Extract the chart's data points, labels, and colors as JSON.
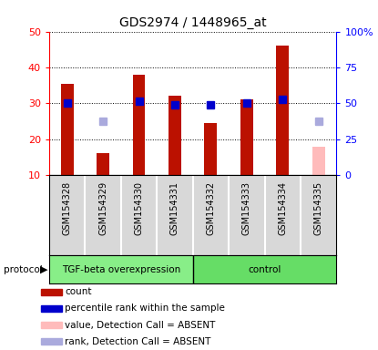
{
  "title": "GDS2974 / 1448965_at",
  "samples": [
    "GSM154328",
    "GSM154329",
    "GSM154330",
    "GSM154331",
    "GSM154332",
    "GSM154333",
    "GSM154334",
    "GSM154335"
  ],
  "bar_values": [
    35.5,
    16.0,
    38.0,
    32.0,
    24.5,
    31.0,
    46.0,
    18.0
  ],
  "bar_absent": [
    false,
    false,
    false,
    false,
    false,
    false,
    false,
    true
  ],
  "rank_values": [
    30.0,
    25.0,
    30.5,
    29.5,
    29.5,
    30.0,
    31.0,
    25.0
  ],
  "rank_absent": [
    false,
    true,
    false,
    false,
    false,
    false,
    false,
    true
  ],
  "bar_color": "#bb1100",
  "bar_absent_color": "#ffbbbb",
  "rank_color": "#0000cc",
  "rank_absent_color": "#aaaadd",
  "ylim_left": [
    10,
    50
  ],
  "ylim_right": [
    0,
    100
  ],
  "yticks_left": [
    10,
    20,
    30,
    40,
    50
  ],
  "ytick_labels_left": [
    "10",
    "20",
    "30",
    "40",
    "50"
  ],
  "yticks_right": [
    0,
    25,
    50,
    75,
    100
  ],
  "ytick_labels_right": [
    "0",
    "25",
    "50",
    "75",
    "100%"
  ],
  "groups": [
    {
      "label": "TGF-beta overexpression",
      "start": 0,
      "end": 4,
      "color": "#88ee88"
    },
    {
      "label": "control",
      "start": 4,
      "end": 8,
      "color": "#66dd66"
    }
  ],
  "legend_items": [
    {
      "label": "count",
      "color": "#bb1100"
    },
    {
      "label": "percentile rank within the sample",
      "color": "#0000cc"
    },
    {
      "label": "value, Detection Call = ABSENT",
      "color": "#ffbbbb"
    },
    {
      "label": "rank, Detection Call = ABSENT",
      "color": "#aaaadd"
    }
  ],
  "bar_width": 0.35,
  "rank_marker_size": 6,
  "bg_color": "#d8d8d8",
  "cell_line_color": "#aaaaaa"
}
